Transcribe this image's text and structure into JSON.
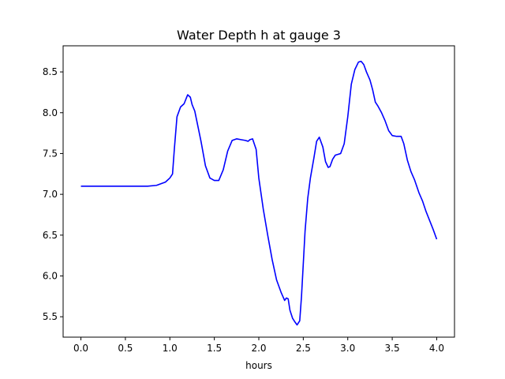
{
  "chart_data": {
    "type": "line",
    "title": "Water Depth h at gauge 3",
    "xlabel": "hours",
    "ylabel": "",
    "xlim": [
      -0.2,
      4.2
    ],
    "ylim": [
      5.25,
      8.82
    ],
    "xticks": [
      0.0,
      0.5,
      1.0,
      1.5,
      2.0,
      2.5,
      3.0,
      3.5,
      4.0
    ],
    "xtick_labels": [
      "0.0",
      "0.5",
      "1.0",
      "1.5",
      "2.0",
      "2.5",
      "3.0",
      "3.5",
      "4.0"
    ],
    "yticks": [
      5.5,
      6.0,
      6.5,
      7.0,
      7.5,
      8.0,
      8.5
    ],
    "ytick_labels": [
      "5.5",
      "6.0",
      "6.5",
      "7.0",
      "7.5",
      "8.0",
      "8.5"
    ],
    "grid": false,
    "legend": "none",
    "series": [
      {
        "color": "#0000ff",
        "x": [
          0.0,
          0.2,
          0.4,
          0.6,
          0.75,
          0.85,
          0.95,
          1.0,
          1.03,
          1.05,
          1.08,
          1.12,
          1.16,
          1.2,
          1.23,
          1.25,
          1.28,
          1.35,
          1.4,
          1.45,
          1.5,
          1.55,
          1.6,
          1.65,
          1.7,
          1.75,
          1.8,
          1.85,
          1.88,
          1.9,
          1.93,
          1.97,
          2.0,
          2.05,
          2.1,
          2.15,
          2.2,
          2.25,
          2.29,
          2.31,
          2.33,
          2.35,
          2.38,
          2.41,
          2.43,
          2.46,
          2.48,
          2.52,
          2.55,
          2.58,
          2.62,
          2.65,
          2.68,
          2.72,
          2.75,
          2.78,
          2.8,
          2.83,
          2.86,
          2.89,
          2.92,
          2.96,
          3.0,
          3.04,
          3.08,
          3.12,
          3.15,
          3.18,
          3.21,
          3.25,
          3.28,
          3.31,
          3.34,
          3.38,
          3.42,
          3.46,
          3.5,
          3.55,
          3.6,
          3.63,
          3.67,
          3.71,
          3.75,
          3.8,
          3.84,
          3.88,
          3.92,
          3.96,
          4.0
        ],
        "values": [
          7.1,
          7.1,
          7.1,
          7.1,
          7.1,
          7.11,
          7.15,
          7.2,
          7.25,
          7.55,
          7.95,
          8.07,
          8.11,
          8.22,
          8.19,
          8.1,
          8.02,
          7.65,
          7.35,
          7.2,
          7.17,
          7.17,
          7.3,
          7.53,
          7.66,
          7.68,
          7.67,
          7.66,
          7.65,
          7.67,
          7.68,
          7.55,
          7.2,
          6.82,
          6.5,
          6.2,
          5.95,
          5.8,
          5.7,
          5.73,
          5.72,
          5.58,
          5.48,
          5.43,
          5.4,
          5.45,
          5.75,
          6.55,
          6.95,
          7.2,
          7.45,
          7.65,
          7.7,
          7.58,
          7.4,
          7.33,
          7.34,
          7.43,
          7.48,
          7.49,
          7.5,
          7.62,
          7.95,
          8.35,
          8.53,
          8.62,
          8.63,
          8.59,
          8.5,
          8.4,
          8.28,
          8.13,
          8.08,
          8.0,
          7.9,
          7.78,
          7.72,
          7.71,
          7.71,
          7.62,
          7.42,
          7.28,
          7.18,
          7.02,
          6.92,
          6.79,
          6.68,
          6.57,
          6.45
        ]
      }
    ]
  }
}
